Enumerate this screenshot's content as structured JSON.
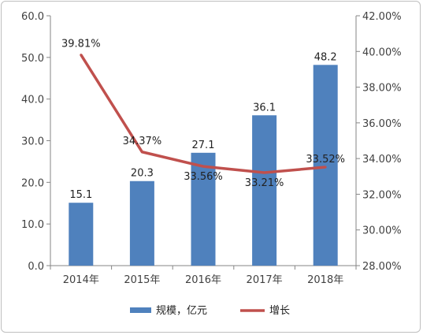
{
  "chart_data": {
    "type": "bar",
    "categories": [
      "2014年",
      "2015年",
      "2016年",
      "2017年",
      "2018年"
    ],
    "series": [
      {
        "name": "规模，亿元",
        "type": "bar",
        "axis": "left",
        "values": [
          15.1,
          20.3,
          27.1,
          36.1,
          48.2
        ],
        "labels": [
          "15.1",
          "20.3",
          "27.1",
          "36.1",
          "48.2"
        ],
        "color": "#4f81bd"
      },
      {
        "name": "增长",
        "type": "line",
        "axis": "right",
        "values": [
          39.81,
          34.37,
          33.56,
          33.21,
          33.52
        ],
        "labels": [
          "39.81%",
          "34.37%",
          "33.56%",
          "33.21%",
          "33.52%"
        ],
        "color": "#c0504d"
      }
    ],
    "left_axis": {
      "ylim": [
        0,
        60
      ],
      "ticks": [
        "0.0",
        "10.0",
        "20.0",
        "30.0",
        "40.0",
        "50.0",
        "60.0"
      ]
    },
    "right_axis": {
      "ylim": [
        28,
        42
      ],
      "ticks": [
        "28.00%",
        "30.00%",
        "32.00%",
        "34.00%",
        "36.00%",
        "38.00%",
        "40.00%",
        "42.00%"
      ]
    },
    "grid": false,
    "legend": "bottom"
  }
}
